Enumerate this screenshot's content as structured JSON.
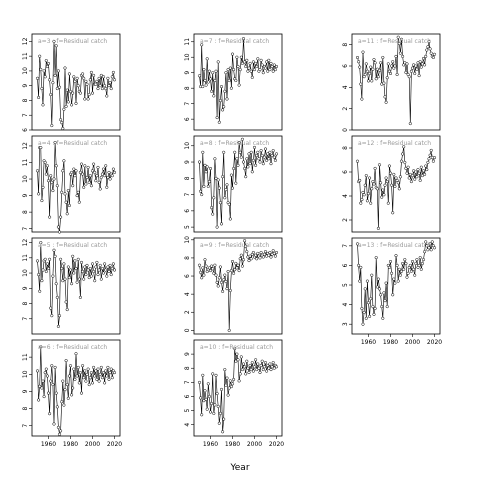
{
  "chart_data": {
    "type": "scatter",
    "xlabel": "Year",
    "x_ticks": [
      1960,
      1980,
      2000,
      2020
    ],
    "xlim": [
      1945,
      2025
    ],
    "colors": {
      "line": "#000000",
      "points": "#000000",
      "frame": "#000000",
      "panel_title": "#9a9a9a"
    },
    "panels": [
      {
        "title": "a=3 : f=Residual catch",
        "ylim": [
          6,
          12.5
        ],
        "yticks": [
          6,
          7,
          8,
          9,
          10,
          11,
          12
        ],
        "show_x_ticks": false,
        "y": [
          9.5,
          8.2,
          11,
          10.1,
          8.8,
          7.7,
          10,
          9.6,
          10.7,
          10.3,
          10.5,
          9.4,
          8.4,
          6.3,
          9.2,
          12,
          9.7,
          11.7,
          8.8,
          10,
          8.9,
          6.7,
          6.5,
          6.1,
          7.4,
          10.2,
          7.6,
          8.7,
          7.9,
          9.8,
          8.6,
          7.7,
          8.5,
          9.6,
          9.3,
          7.8,
          9.5,
          9,
          8.6,
          8.5,
          9.7,
          9.8,
          9.5,
          8.1,
          9.3,
          9.1,
          8.1,
          8.4,
          9.4,
          9.9,
          8.5,
          9.7,
          9.1,
          9.1,
          9.3,
          8.8,
          9.5,
          9,
          9.7,
          8.8,
          9.6,
          9,
          8.8,
          8.3,
          9.5,
          9,
          9.2,
          8.8,
          9.6,
          9.9,
          9.4
        ]
      },
      {
        "title": "a=7 : f=Residual catch",
        "ylim": [
          5.3,
          11.5
        ],
        "yticks": [
          6,
          7,
          8,
          9,
          10,
          11
        ],
        "show_x_ticks": false,
        "y": [
          8.8,
          8.1,
          10.8,
          8.1,
          9.2,
          8.5,
          8.2,
          9.9,
          8.4,
          9.1,
          8.6,
          7.8,
          9,
          7.5,
          8.5,
          9.1,
          6.1,
          9.7,
          5.8,
          7.2,
          8.1,
          6.6,
          6.8,
          7.8,
          9,
          7.3,
          9.2,
          8.5,
          9.3,
          8,
          10.2,
          9.2,
          8.6,
          8.5,
          10,
          9.4,
          8.2,
          9.2,
          10,
          9.6,
          11.2,
          9.7,
          9.4,
          9.8,
          9.1,
          9.3,
          9.6,
          9.1,
          8.7,
          9.7,
          9.2,
          9.6,
          9.4,
          9.9,
          9.1,
          9.2,
          9.8,
          9.5,
          9,
          9.4,
          9.3,
          9.7,
          9.1,
          9.8,
          9.2,
          9.6,
          9.4,
          9.1,
          9.5,
          9.2,
          9.4
        ]
      },
      {
        "title": "a=11 : f=Residual catch",
        "ylim": [
          0,
          9
        ],
        "yticks": [
          0,
          2,
          4,
          6,
          8
        ],
        "show_x_ticks": false,
        "y": [
          6.8,
          6.4,
          5.9,
          4.3,
          2.9,
          7.3,
          5,
          5.2,
          6.2,
          5.5,
          4.6,
          5.3,
          5.9,
          4.6,
          5.7,
          6.6,
          6.3,
          4.8,
          5.7,
          5,
          5.6,
          6.3,
          4.3,
          6.8,
          4.4,
          3.1,
          2.6,
          4.9,
          6.2,
          5.5,
          5.3,
          6,
          6.4,
          5.8,
          6,
          6.9,
          5.2,
          8.7,
          8.1,
          7.2,
          8.5,
          6.9,
          6.1,
          6.3,
          5.4,
          6.2,
          5.2,
          5,
          0.6,
          5.5,
          5.8,
          6.1,
          5.3,
          6,
          5.7,
          6.3,
          5.1,
          6.4,
          5.9,
          6.2,
          6.7,
          6.1,
          6.9,
          7.5,
          7.8,
          8.3,
          7.6,
          7.2,
          6.9,
          6.8,
          7.1
        ]
      },
      {
        "title": "a=4 : f=Residual catch",
        "ylim": [
          6.8,
          12.6
        ],
        "yticks": [
          7,
          8,
          9,
          10,
          11,
          12
        ],
        "show_x_ticks": false,
        "y": [
          10.5,
          9.1,
          11.9,
          11.9,
          8.7,
          9.5,
          11.1,
          11,
          10.3,
          10.8,
          9.9,
          7.7,
          10.2,
          9.8,
          9.3,
          10,
          12.2,
          10.8,
          9.6,
          7.1,
          6.8,
          7.7,
          9.2,
          10.5,
          11.1,
          9.1,
          8.6,
          7.9,
          9.3,
          8.4,
          10.3,
          10.4,
          9.6,
          10.6,
          10.2,
          10.5,
          9,
          9.2,
          8.6,
          10.4,
          10.9,
          10.3,
          9.5,
          10.8,
          9.7,
          10.1,
          10.7,
          9.8,
          10.2,
          9.6,
          10.5,
          10.9,
          10.4,
          9.9,
          10.2,
          10.7,
          9.8,
          9.4,
          10.1,
          10.3,
          10.6,
          10.2,
          10.8,
          9.5,
          10.1,
          10.4,
          10,
          10.3,
          10.2,
          10.6,
          10.4
        ]
      },
      {
        "title": "a=8 : f=Residual catch",
        "ylim": [
          4.7,
          10.6
        ],
        "yticks": [
          5,
          6,
          7,
          8,
          9,
          10
        ],
        "show_x_ticks": false,
        "y": [
          9,
          7.2,
          7,
          9.6,
          7.5,
          8.8,
          8.4,
          8.7,
          7.5,
          7.8,
          8.6,
          6.2,
          5.8,
          6.8,
          9.2,
          8,
          5,
          7.9,
          7.4,
          6.5,
          5.2,
          8.1,
          9.6,
          6.8,
          7.3,
          7.6,
          6.5,
          6.4,
          5.5,
          8.2,
          7.4,
          8.6,
          9.6,
          7.7,
          9.2,
          8.8,
          10.2,
          9.6,
          9.3,
          10.4,
          9,
          8.6,
          8.1,
          9.2,
          8.7,
          9.5,
          8.9,
          9.6,
          8.4,
          9.1,
          9.9,
          8.8,
          9.4,
          9.6,
          9.2,
          9,
          9.7,
          9.4,
          8.9,
          9.3,
          9.8,
          9.1,
          9.5,
          9.2,
          9.6,
          8.9,
          9.4,
          9.7,
          9.3,
          9.1,
          9.5
        ]
      },
      {
        "title": "a=12 : f=Residual catch",
        "ylim": [
          1,
          9
        ],
        "yticks": [
          2,
          4,
          6,
          8
        ],
        "show_x_ticks": false,
        "y": [
          6.9,
          5.2,
          5.3,
          3.4,
          3.7,
          4.3,
          4.1,
          4.9,
          5.7,
          3.6,
          4.2,
          5.5,
          3.4,
          4.6,
          5.2,
          5,
          6.3,
          4.7,
          4.6,
          1.3,
          6.6,
          5.1,
          3.9,
          4.5,
          4.1,
          4.9,
          5.5,
          5.2,
          3.4,
          6.5,
          5.9,
          4.9,
          2.6,
          5.8,
          4.8,
          5.5,
          5.3,
          5.1,
          4.6,
          5.6,
          6.9,
          7.5,
          8.1,
          6.8,
          6.3,
          5.9,
          6.4,
          5.5,
          5.8,
          5.2,
          5.7,
          6.1,
          5.4,
          6,
          5.6,
          6.2,
          5.9,
          5.3,
          6.4,
          5.7,
          6.1,
          5.8,
          6.5,
          6.2,
          6.8,
          7.1,
          7.4,
          7.8,
          7.2,
          6.9,
          7.2
        ]
      },
      {
        "title": "a=5 : f=Residual catch",
        "ylim": [
          6,
          12.3
        ],
        "yticks": [
          7,
          8,
          9,
          10,
          11,
          12
        ],
        "show_x_ticks": false,
        "y": [
          10.8,
          9.9,
          8.8,
          12,
          9.5,
          10.2,
          10.8,
          10.9,
          10.1,
          10.6,
          10.3,
          10.9,
          7.7,
          7.2,
          9.8,
          11.5,
          11.1,
          9.3,
          8.4,
          6.5,
          7.2,
          10.9,
          10.3,
          9.5,
          10.6,
          9.6,
          8.1,
          7.6,
          10.4,
          9.7,
          10.2,
          9.3,
          11.1,
          10,
          10.8,
          10.3,
          9.4,
          10.9,
          9.6,
          8.4,
          10.7,
          10.1,
          9.6,
          10.4,
          9.9,
          10.5,
          10.2,
          9.7,
          10.3,
          9.8,
          10.6,
          10.1,
          9.5,
          10.4,
          10.7,
          9.9,
          10.2,
          10.5,
          9.6,
          10.3,
          10,
          10.6,
          10.2,
          9.8,
          10.4,
          10.1,
          10.5,
          9.9,
          10.3,
          10.6,
          10.2
        ]
      },
      {
        "title": "a=9 : f=Residual catch",
        "ylim": [
          -0.4,
          10.2
        ],
        "yticks": [
          0,
          2,
          4,
          6,
          8,
          10
        ],
        "show_x_ticks": false,
        "y": [
          7.2,
          6.4,
          5.8,
          6.9,
          6.1,
          7.8,
          7.1,
          6.5,
          6.7,
          6.9,
          6.6,
          7.1,
          6.8,
          6.3,
          7.2,
          6.1,
          5.3,
          4.9,
          5.8,
          7,
          5.3,
          4.3,
          5.6,
          6.1,
          5.4,
          4.6,
          6.5,
          0,
          4.4,
          6.6,
          7.6,
          6.3,
          6.7,
          7.4,
          6.9,
          7.2,
          6.6,
          7.9,
          8.3,
          7.1,
          7.8,
          9.9,
          9.3,
          8.7,
          8.1,
          7.7,
          8.2,
          7.9,
          8.4,
          8.6,
          8.1,
          8.3,
          7.9,
          8.5,
          8.2,
          8,
          8.6,
          8.3,
          8.1,
          8.4,
          8.7,
          8.2,
          8.5,
          8.3,
          8.6,
          8.1,
          8.4,
          8.8,
          8.5,
          8.2,
          8.6
        ]
      },
      {
        "title": "a=13 : f=Residual catch",
        "ylim": [
          2.5,
          7.4
        ],
        "yticks": [
          3,
          4,
          5,
          6,
          7
        ],
        "show_x_ticks": true,
        "y": [
          7.1,
          6,
          5.2,
          5.9,
          3.8,
          3,
          3.6,
          4.8,
          3.3,
          5.2,
          4.1,
          3.4,
          4.3,
          5.5,
          3.9,
          3.5,
          3.8,
          6.4,
          4.9,
          5.3,
          4.8,
          4.5,
          3.9,
          3.3,
          4.6,
          4.2,
          5.1,
          3.9,
          6,
          5.9,
          6.2,
          5.6,
          4.5,
          5.3,
          5.1,
          6.5,
          6,
          5.2,
          5.8,
          5.5,
          5.7,
          6.1,
          5.8,
          6.3,
          6.1,
          5.4,
          5.6,
          5.9,
          6,
          5.7,
          6.2,
          5.8,
          5.5,
          6.1,
          6.3,
          5.9,
          6,
          6.4,
          5.8,
          6.1,
          6.3,
          6.7,
          7.2,
          7,
          6.8,
          6.9,
          7.1,
          6.8,
          7.2,
          7,
          6.9
        ]
      },
      {
        "title": "a=6 : f=Residual catch",
        "ylim": [
          6.4,
          12
        ],
        "yticks": [
          7,
          8,
          9,
          10,
          11
        ],
        "show_x_ticks": true,
        "y": [
          10.2,
          8.5,
          9.3,
          11.6,
          9.2,
          9.6,
          8.7,
          10.1,
          10.3,
          9.9,
          8.9,
          7.7,
          9.6,
          10.5,
          9.4,
          7.1,
          10.4,
          8.9,
          8.1,
          6.9,
          6.5,
          6.7,
          8.4,
          9.6,
          8.2,
          9.1,
          10.8,
          9.4,
          8.6,
          9.9,
          10.5,
          8.8,
          9.2,
          10.3,
          9.7,
          11.2,
          9.9,
          10.4,
          9.5,
          10.1,
          8.9,
          10.5,
          9.8,
          10.2,
          9.6,
          10,
          10.3,
          9.4,
          9.8,
          10.1,
          9.5,
          10.4,
          9.9,
          10.2,
          9.7,
          10.3,
          9.6,
          10,
          10.4,
          9.8,
          10.1,
          9.5,
          10.2,
          9.9,
          10.4,
          9.7,
          10.1,
          10.3,
          9.8,
          10.2,
          10.1
        ]
      },
      {
        "title": "a=10 : f=Residual catch",
        "ylim": [
          3.2,
          10
        ],
        "yticks": [
          4,
          5,
          6,
          7,
          8,
          9
        ],
        "show_x_ticks": true,
        "y": [
          7,
          5.9,
          4.7,
          7.5,
          5.7,
          6.4,
          5.8,
          5.1,
          6.9,
          6,
          4.9,
          5.5,
          7.6,
          4.8,
          5.4,
          7.5,
          6.2,
          5.3,
          4.1,
          4.8,
          6.5,
          3.5,
          4.4,
          7.9,
          6.8,
          7.3,
          6.1,
          6.6,
          7.1,
          6.7,
          6.9,
          7.2,
          9.4,
          8.5,
          9,
          8.6,
          7.1,
          7.6,
          8.8,
          7.9,
          8.3,
          8.1,
          7.6,
          8.5,
          8,
          7.7,
          8.2,
          7.9,
          8.4,
          7.8,
          8.1,
          8.6,
          7.9,
          8.3,
          8,
          7.7,
          8.2,
          8.5,
          7.9,
          8.1,
          8.4,
          7.8,
          8.2,
          8,
          8.3,
          7.9,
          8.1,
          8.4,
          8,
          8.2,
          8.1
        ]
      }
    ]
  }
}
